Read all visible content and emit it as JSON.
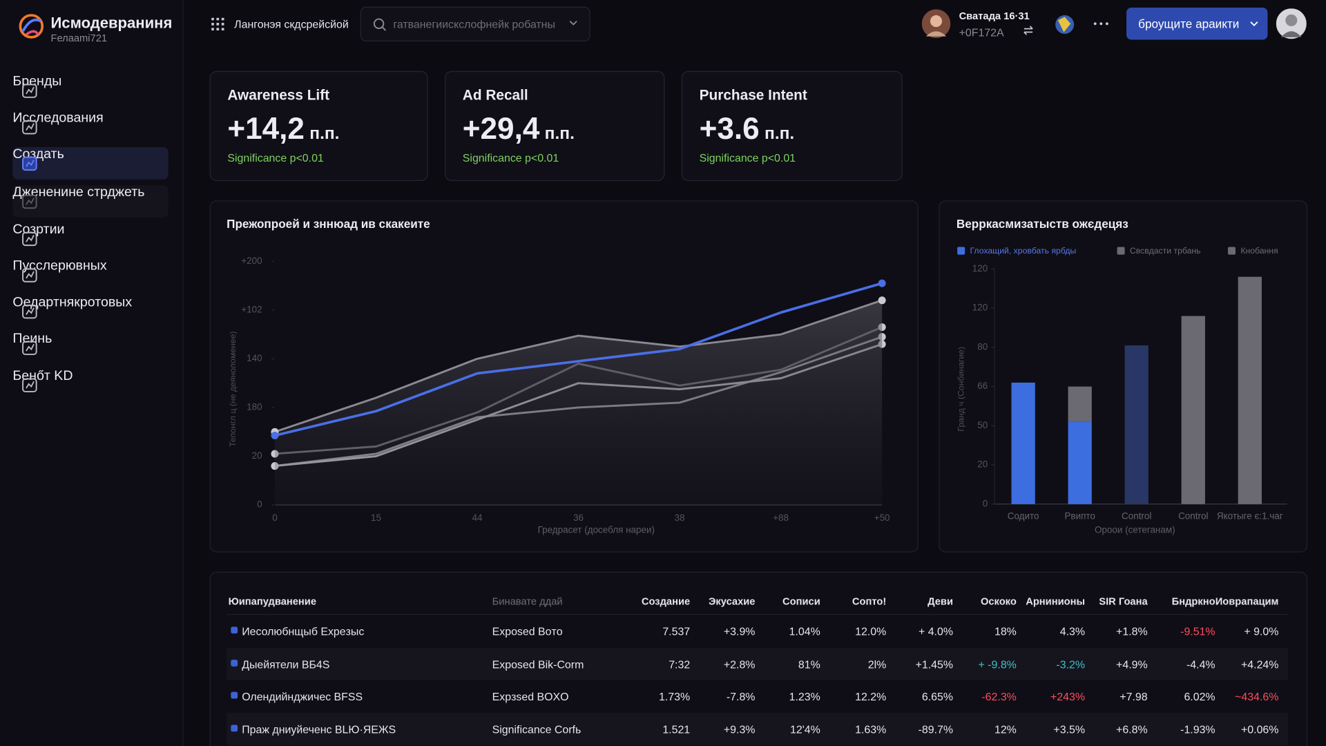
{
  "brand": {
    "title": "Исмодевраниня",
    "subtitle": "Fелаami721"
  },
  "nav": [
    {
      "label": "Бренды"
    },
    {
      "label": "Исследования"
    },
    {
      "label": "Создать",
      "state": "active"
    },
    {
      "label": "Джененине стрджеть",
      "state": "muted"
    },
    {
      "label": "Созртии"
    },
    {
      "label": "Пусслерювных"
    },
    {
      "label": "Оедартнякротовых"
    },
    {
      "label": "Пеинь"
    },
    {
      "label": "Бенőт KD"
    }
  ],
  "header": {
    "workspace": "Лангонэя скдсрейсйой",
    "search_placeholder": "гатванегиискслофнейк робатны",
    "user_name": "Сватада 16·31",
    "user_id": "+0F172A",
    "button": "броущите араикти"
  },
  "kpis": [
    {
      "label": "Awareness Lift",
      "value": "+14,2",
      "unit": "п.п.",
      "note": "Significance p<0.01"
    },
    {
      "label": "Ad Recall",
      "value": "+29,4",
      "unit": "п.п.",
      "note": "Significance p<0.01"
    },
    {
      "label": "Purchase Intent",
      "value": "+3.6",
      "unit": "п.п.",
      "note": "Significance p<0.01"
    }
  ],
  "chart_data": [
    {
      "type": "line",
      "title": "Прежопроей и зннюад ив скакеите",
      "x_label": "Гредрасет (досебля нареи)",
      "y_label": "Тепонгл ц (не деяноломенее)",
      "categories": [
        "0",
        "15",
        "44",
        "36",
        "38",
        "+88",
        "+50"
      ],
      "ylim": [
        0,
        100
      ],
      "yticks": [
        0,
        20,
        {
          "value": 40,
          "label": "180"
        },
        {
          "value": 60,
          "label": "140"
        },
        {
          "value": 80,
          "label": "+102"
        },
        {
          "value": 100,
          "label": "+200"
        }
      ],
      "grid": false,
      "series": [
        {
          "color": "#4a6fe6",
          "values": [
            28.5,
            38.5,
            54,
            59,
            64,
            79,
            91
          ]
        },
        {
          "color": "#8a8990",
          "values": [
            30,
            44,
            60,
            69.5,
            65,
            70,
            84
          ],
          "area": true
        },
        {
          "color": "#6e6d75",
          "values": [
            21,
            24,
            38,
            58,
            49,
            55.5,
            73
          ]
        },
        {
          "color": "#b5b4bb",
          "values": [
            16,
            20,
            35,
            50,
            47.5,
            52,
            66
          ]
        },
        {
          "color": "#9c9ba2",
          "values": [
            16,
            21,
            36,
            40,
            42,
            54.5,
            69
          ]
        }
      ]
    },
    {
      "type": "stacked_bar",
      "title": "Верркасмизатыств ожєдецяз",
      "x_label": "Ороои (сетеганам)",
      "y_label": "Гранд ч (Сонбинагие)",
      "categories": [
        "Содито",
        "Рвипто",
        "Control",
        "Control",
        "Якотыге є:1.чаг"
      ],
      "ylim": [
        0,
        120
      ],
      "yticks": [
        0,
        20,
        {
          "value": 40,
          "label": "50"
        },
        {
          "value": 60,
          "label": "66"
        },
        80,
        {
          "value": 100,
          "label": "120"
        },
        120
      ],
      "grid": false,
      "series": [
        {
          "name": "Глохащий, хровбать ярбды",
          "color": "#3d6ee0",
          "values": [
            62,
            42,
            null,
            null,
            null
          ]
        },
        {
          "name": "Свсвдасти трбань",
          "color": "#6b6a72",
          "values": [
            null,
            18,
            null,
            96,
            116
          ]
        },
        {
          "name": "Кнобання",
          "color": "#283766",
          "values": [
            null,
            null,
            81,
            null,
            null
          ]
        }
      ]
    }
  ],
  "table": {
    "header": [
      "Юипапудванение",
      "Бинавате ддай",
      "Создание",
      "Экусахие",
      "Сописи",
      "Сопто!",
      "Деви",
      "Оскоко",
      "Арнинионы",
      "SIR Гоана",
      "Бндркно",
      "Иоврапацим"
    ],
    "rows": [
      [
        "Иесолюбнщыб Expeзыс",
        "Exposed Boтo",
        "7.537",
        "+3.9%",
        "1.04%",
        "12.0%",
        "+ 4.0%",
        "18%",
        "4.3%",
        "+1.8%",
        "-9.51%",
        "+ 9.0%"
      ],
      [
        "Дыейятели BБ4S",
        "Exposed Bik-Corm",
        "7:32",
        "+2.8%",
        "81%",
        "2l%",
        "+1.45%",
        "+ -9.8%",
        "-3.2%",
        "+4.9%",
        "-4.4%",
        "+4.24%"
      ],
      [
        "Олендийнджичес BFSS",
        "Expзsed BOXO",
        "1.73%",
        "-7.8%",
        "1.23%",
        "12.2%",
        "6.65%",
        "-62.3%",
        "+243%",
        "+7.98",
        "6.02%",
        "~434.6%"
      ],
      [
        "Праж дниуйеченс BLЮ·ЯEЖS",
        "Significance Corfь",
        "1.521",
        "+9.3%",
        "12'4%",
        "1.63%",
        "-89.7%",
        "12%",
        "+3.5%",
        "+6.8%",
        "-1.93%",
        "+0.06%"
      ]
    ],
    "colored_cells": [
      {
        "row": 0,
        "col": 10,
        "color": "#ff4d5e"
      },
      {
        "row": 1,
        "col": 7,
        "color": "#3fc1c9"
      },
      {
        "row": 1,
        "col": 8,
        "color": "#3fc1c9"
      },
      {
        "row": 2,
        "col": 7,
        "color": "#ff4d5e"
      },
      {
        "row": 2,
        "col": 8,
        "color": "#ff4d5e"
      },
      {
        "row": 2,
        "col": 11,
        "color": "#ff4d5e"
      }
    ]
  }
}
